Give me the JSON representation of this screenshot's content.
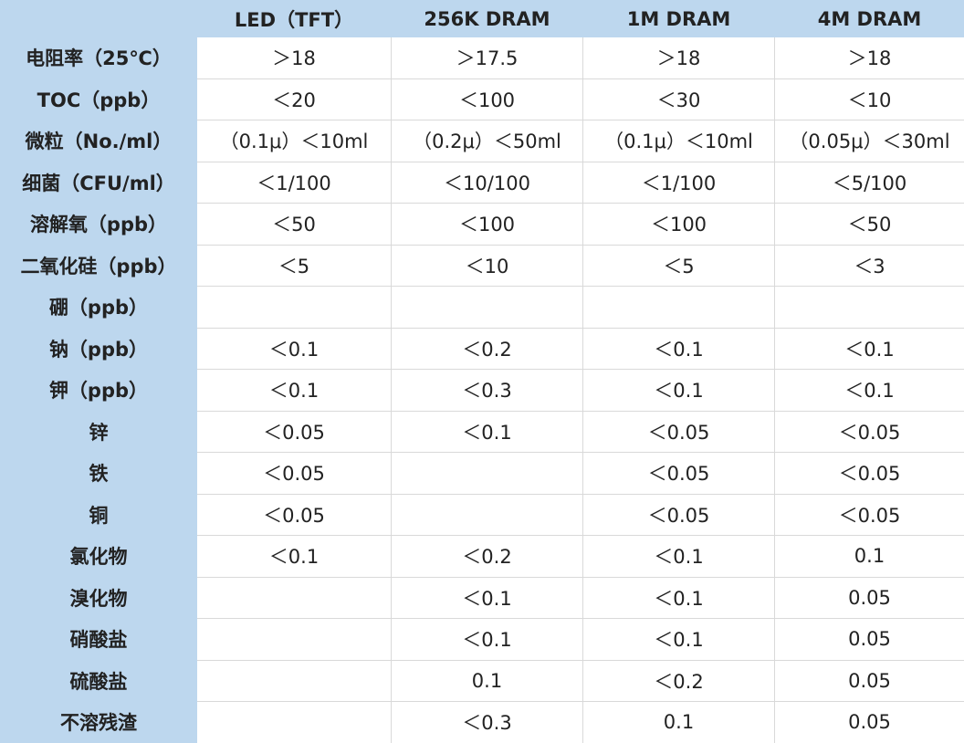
{
  "table": {
    "header": [
      "LED（TFT）",
      "256K DRAM",
      "1M DRAM",
      "4M DRAM"
    ],
    "rows": [
      [
        "电阻率（25℃）",
        "＞18",
        "＞17.5",
        "＞18",
        "＞18"
      ],
      [
        "TOC（ppb）",
        "＜20",
        "＜100",
        "＜30",
        "＜10"
      ],
      [
        "微粒（No./ml）",
        "（0.1μ）＜10ml",
        "（0.2μ）＜50ml",
        "（0.1μ）＜10ml",
        "（0.05μ）＜30ml"
      ],
      [
        "细菌（CFU/ml）",
        "＜1/100",
        "＜10/100",
        "＜1/100",
        "＜5/100"
      ],
      [
        "溶解氧（ppb）",
        "＜50",
        "＜100",
        "＜100",
        "＜50"
      ],
      [
        "二氧化硅（ppb）",
        "＜5",
        "＜10",
        "＜5",
        "＜3"
      ],
      [
        "硼（ppb）",
        null,
        null,
        null,
        null
      ],
      [
        "钠（ppb）",
        "＜0.1",
        "＜0.2",
        "＜0.1",
        "＜0.1"
      ],
      [
        "钾（ppb）",
        "＜0.1",
        "＜0.3",
        "＜0.1",
        "＜0.1"
      ],
      [
        "锌",
        "＜0.05",
        "＜0.1",
        "＜0.05",
        "＜0.05"
      ],
      [
        "铁",
        "＜0.05",
        null,
        "＜0.05",
        "＜0.05"
      ],
      [
        "铜",
        "＜0.05",
        null,
        "＜0.05",
        "＜0.05"
      ],
      [
        "氯化物",
        "＜0.1",
        "＜0.2",
        "＜0.1",
        "0.1"
      ],
      [
        "溴化物",
        null,
        "＜0.1",
        "＜0.1",
        "0.05"
      ],
      [
        "硝酸盐",
        null,
        "＜0.1",
        "＜0.1",
        "0.05"
      ],
      [
        "硫酸盐",
        null,
        "0.1",
        "＜0.2",
        "0.05"
      ],
      [
        "不溶残渣",
        null,
        "＜0.3",
        "0.1",
        "0.05"
      ]
    ]
  }
}
